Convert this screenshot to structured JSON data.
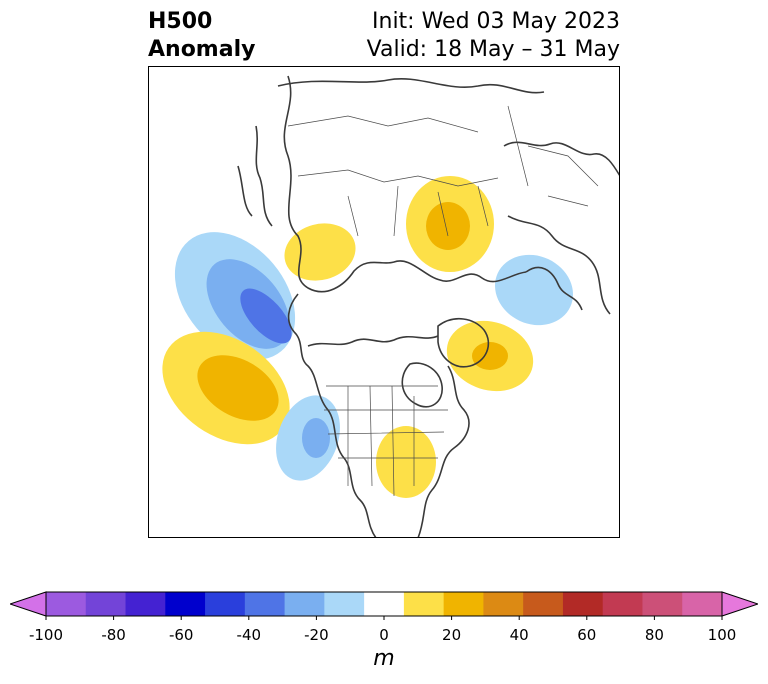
{
  "title": {
    "left_line1": "H500",
    "left_line2": "Anomaly",
    "right_line1": "Init: Wed 03 May 2023",
    "right_line2": "Valid: 18 May – 31 May"
  },
  "map": {
    "projection": "north-polar-stereographic",
    "field": "500 hPa geopotential height anomaly",
    "anomaly_features": [
      {
        "region": "Gulf of Alaska / NE Pacific",
        "sign": "negative",
        "peak_m": -40
      },
      {
        "region": "Central North Pacific",
        "sign": "positive",
        "peak_m": 30
      },
      {
        "region": "Western United States",
        "sign": "negative",
        "peak_m": -30
      },
      {
        "region": "Eastern United States",
        "sign": "positive",
        "peak_m": 20
      },
      {
        "region": "Eastern Siberia",
        "sign": "positive",
        "peak_m": 20
      },
      {
        "region": "Western Russia",
        "sign": "positive",
        "peak_m": 30
      },
      {
        "region": "Eastern Europe",
        "sign": "negative",
        "peak_m": -20
      },
      {
        "region": "Greenland / North Atlantic",
        "sign": "positive",
        "peak_m": 30
      }
    ]
  },
  "colorbar": {
    "unit": "m",
    "ticks": [
      "-100",
      "-80",
      "-60",
      "-40",
      "-20",
      "0",
      "20",
      "40",
      "60",
      "80",
      "100"
    ],
    "levels": [
      -100,
      -90,
      -80,
      -70,
      -60,
      -50,
      -40,
      -30,
      -20,
      -10,
      10,
      20,
      30,
      40,
      50,
      60,
      70,
      80,
      90,
      100
    ],
    "colors": [
      "#d371e8",
      "#9c5ae0",
      "#7344d8",
      "#4422d2",
      "#0000cd",
      "#2a3fdc",
      "#4f74e6",
      "#7aaff0",
      "#aad8f8",
      "#ffffff",
      "#fde048",
      "#f0b400",
      "#dc8a14",
      "#c75a1c",
      "#b22a26",
      "#c23a52",
      "#cc5078",
      "#d864a8",
      "#e678dc"
    ]
  }
}
